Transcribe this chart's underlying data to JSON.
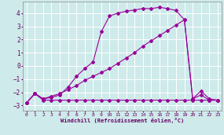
{
  "xlabel": "Windchill (Refroidissement éolien,°C)",
  "background_color": "#ceeaea",
  "grid_color": "#ffffff",
  "line_color": "#990099",
  "xlim": [
    -0.5,
    23.5
  ],
  "ylim": [
    -3.4,
    4.9
  ],
  "yticks": [
    -3,
    -2,
    -1,
    0,
    1,
    2,
    3,
    4
  ],
  "xticks": [
    0,
    1,
    2,
    3,
    4,
    5,
    6,
    7,
    8,
    9,
    10,
    11,
    12,
    13,
    14,
    15,
    16,
    17,
    18,
    19,
    20,
    21,
    22,
    23
  ],
  "s1_x": [
    0,
    1,
    2,
    3,
    4,
    5,
    6,
    7,
    8,
    9,
    10,
    11,
    12,
    13,
    14,
    15,
    16,
    17,
    18,
    19,
    20,
    21,
    22,
    23
  ],
  "s1_y": [
    -2.8,
    -2.1,
    -2.6,
    -2.6,
    -2.6,
    -2.6,
    -2.6,
    -2.6,
    -2.6,
    -2.6,
    -2.6,
    -2.6,
    -2.6,
    -2.6,
    -2.6,
    -2.6,
    -2.6,
    -2.6,
    -2.6,
    -2.6,
    -2.6,
    -2.6,
    -2.6,
    -2.6
  ],
  "s2_x": [
    0,
    1,
    2,
    3,
    4,
    5,
    6,
    7,
    8,
    9,
    10,
    11,
    12,
    13,
    14,
    15,
    16,
    17,
    18,
    19,
    20,
    21,
    22,
    23
  ],
  "s2_y": [
    -2.8,
    -2.1,
    -2.5,
    -2.3,
    -2.1,
    -1.8,
    -1.5,
    -1.1,
    -0.8,
    -0.5,
    -0.2,
    0.2,
    0.6,
    1.0,
    1.5,
    1.9,
    2.3,
    2.7,
    3.1,
    3.5,
    -2.5,
    -1.9,
    -2.5,
    -2.6
  ],
  "s3_x": [
    0,
    1,
    2,
    3,
    4,
    5,
    6,
    7,
    8,
    9,
    10,
    11,
    12,
    13,
    14,
    15,
    16,
    17,
    18,
    19,
    20,
    21,
    22,
    23
  ],
  "s3_y": [
    -2.8,
    -2.1,
    -2.5,
    -2.4,
    -2.2,
    -1.6,
    -0.8,
    -0.2,
    0.3,
    2.6,
    3.8,
    4.0,
    4.15,
    4.25,
    4.35,
    4.35,
    4.45,
    4.35,
    4.2,
    3.5,
    -2.5,
    -2.2,
    -2.6,
    -2.6
  ]
}
